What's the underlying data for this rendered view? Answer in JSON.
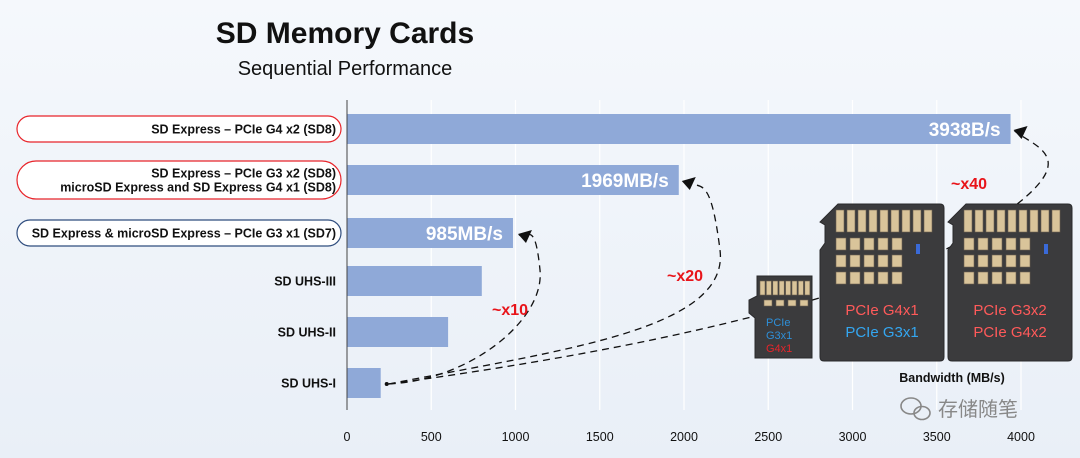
{
  "chart_data": {
    "type": "bar",
    "orientation": "horizontal",
    "title": "SD Memory Cards",
    "subtitle": "Sequential Performance",
    "xlabel": "Bandwidth (MB/s)",
    "xlim": [
      0,
      4000
    ],
    "xticks": [
      "0",
      "500",
      "1000",
      "1500",
      "2000",
      "2500",
      "3000",
      "3500",
      "4000"
    ],
    "categories": [
      {
        "lines": [
          "SD Express – PCIe G4 x2 (SD8)"
        ],
        "boxed": true,
        "box_color": "#e8242a",
        "value": 3938,
        "value_label": "3938B/s"
      },
      {
        "lines": [
          "SD Express – PCIe G3 x2 (SD8)",
          "microSD Express and SD Express G4 x1 (SD8)"
        ],
        "boxed": true,
        "box_color": "#e8242a",
        "value": 1969,
        "value_label": "1969MB/s"
      },
      {
        "lines": [
          "SD Express & microSD Express – PCIe G3 x1 (SD7)"
        ],
        "boxed": true,
        "box_color": "#2f4d7e",
        "value": 985,
        "value_label": "985MB/s"
      },
      {
        "lines": [
          "SD UHS-III"
        ],
        "boxed": false,
        "value": 800,
        "value_label": ""
      },
      {
        "lines": [
          "SD UHS-II"
        ],
        "boxed": false,
        "value": 600,
        "value_label": ""
      },
      {
        "lines": [
          "SD UHS-I"
        ],
        "boxed": false,
        "value": 200,
        "value_label": ""
      }
    ],
    "annotations": [
      "~x10",
      "~x20",
      "~x40"
    ]
  },
  "cards": {
    "micro": {
      "lines": [
        "PCIe",
        "G3x1",
        "G4x1"
      ],
      "colors": [
        "#2e8fd8",
        "#2e8fd8",
        "#e8242a"
      ]
    },
    "sd1": {
      "lines": [
        "PCIe G4x1",
        "PCIe G3x1"
      ],
      "colors": [
        "#ff5a5a",
        "#34a6f0"
      ]
    },
    "sd2": {
      "lines": [
        "PCIe G3x2",
        "PCIe G4x2"
      ],
      "colors": [
        "#ff5a5a",
        "#ff5a5a"
      ]
    }
  },
  "watermark": "存储随笔",
  "colors": {
    "bar": "#8fa9d8",
    "axis": "#444444"
  }
}
